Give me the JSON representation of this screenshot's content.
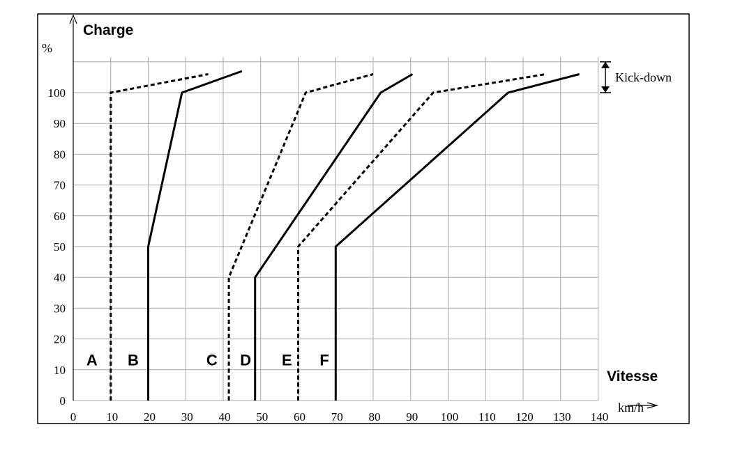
{
  "chart_data": {
    "type": "line",
    "ylabel": "Charge",
    "ylabel_unit": "%",
    "xlabel": "Vitesse",
    "xlabel_unit": "km/h",
    "xlim": [
      0,
      140
    ],
    "ylim": [
      0,
      100
    ],
    "x_ticks": [
      0,
      10,
      20,
      30,
      40,
      50,
      60,
      70,
      80,
      90,
      100,
      110,
      120,
      130,
      140
    ],
    "y_ticks": [
      0,
      10,
      20,
      30,
      40,
      50,
      60,
      70,
      80,
      90,
      100
    ],
    "grid": true,
    "series": [
      {
        "name": "A",
        "style": "dashed",
        "points": [
          [
            10,
            0
          ],
          [
            10,
            100
          ],
          [
            36,
            106
          ]
        ]
      },
      {
        "name": "B",
        "style": "solid",
        "points": [
          [
            20,
            0
          ],
          [
            20,
            50
          ],
          [
            29,
            100
          ],
          [
            45,
            107
          ]
        ]
      },
      {
        "name": "C",
        "style": "dashed",
        "points": [
          [
            41.5,
            0
          ],
          [
            41.5,
            40
          ],
          [
            62,
            100
          ],
          [
            80,
            106
          ]
        ]
      },
      {
        "name": "D",
        "style": "solid",
        "points": [
          [
            48.5,
            0
          ],
          [
            48.5,
            40
          ],
          [
            82,
            100
          ],
          [
            90.5,
            106
          ]
        ]
      },
      {
        "name": "E",
        "style": "dashed",
        "points": [
          [
            60,
            0
          ],
          [
            60,
            50
          ],
          [
            96,
            100
          ],
          [
            126,
            106
          ]
        ]
      },
      {
        "name": "F",
        "style": "solid",
        "points": [
          [
            70,
            0
          ],
          [
            70,
            50
          ],
          [
            116,
            100
          ],
          [
            135,
            106
          ]
        ]
      }
    ],
    "curve_label_positions": {
      "A": 5,
      "B": 16,
      "C": 37,
      "D": 46,
      "E": 57,
      "F": 67
    },
    "curve_label_y": 16,
    "annotation": {
      "text": "Kick-down",
      "y_range": [
        100,
        110
      ]
    }
  }
}
